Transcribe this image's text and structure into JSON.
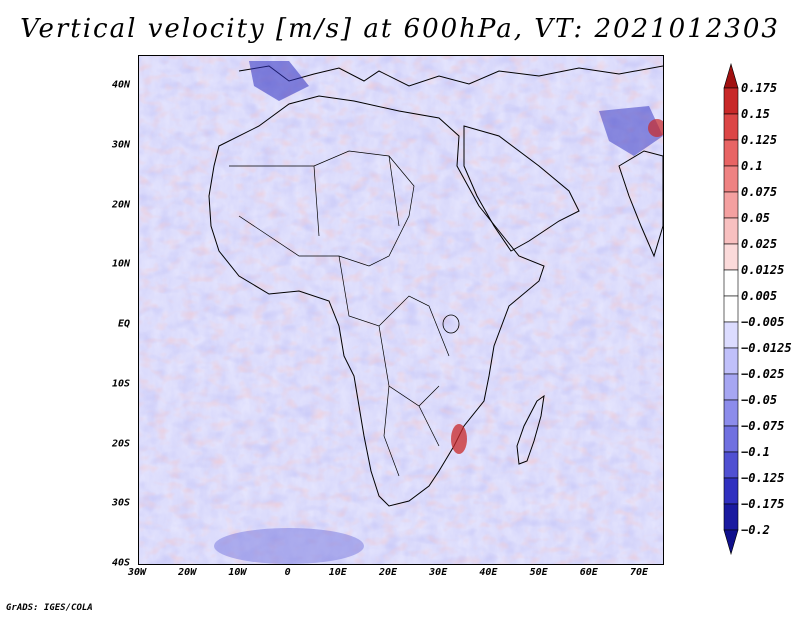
{
  "title": "Vertical velocity [m/s] at 600hPa, VT: 2021012303",
  "footer": "GrADS: IGES/COLA",
  "map": {
    "lat_labels": [
      "40N",
      "30N",
      "20N",
      "10N",
      "EQ",
      "10S",
      "20S",
      "30S",
      "40S"
    ],
    "lon_labels": [
      "30W",
      "20W",
      "10W",
      "0",
      "10E",
      "20E",
      "30E",
      "40E",
      "50E",
      "60E",
      "70E"
    ]
  },
  "colorbar": {
    "labels": [
      "0.175",
      "0.15",
      "0.125",
      "0.1",
      "0.075",
      "0.05",
      "0.025",
      "0.0125",
      "0.005",
      "−0.005",
      "−0.0125",
      "−0.025",
      "−0.05",
      "−0.075",
      "−0.1",
      "−0.125",
      "−0.175",
      "−0.2"
    ],
    "colors": [
      "#a01010",
      "#c82828",
      "#dc4646",
      "#e86464",
      "#ef8282",
      "#f4a0a0",
      "#f8c0c0",
      "#fbdada",
      "#ffffff",
      "#ffffff",
      "#dcdcff",
      "#c0c0fa",
      "#a6a6f2",
      "#8c8ceb",
      "#7070e0",
      "#5050d2",
      "#3030c0",
      "#1a1aa0",
      "#10108c"
    ]
  }
}
